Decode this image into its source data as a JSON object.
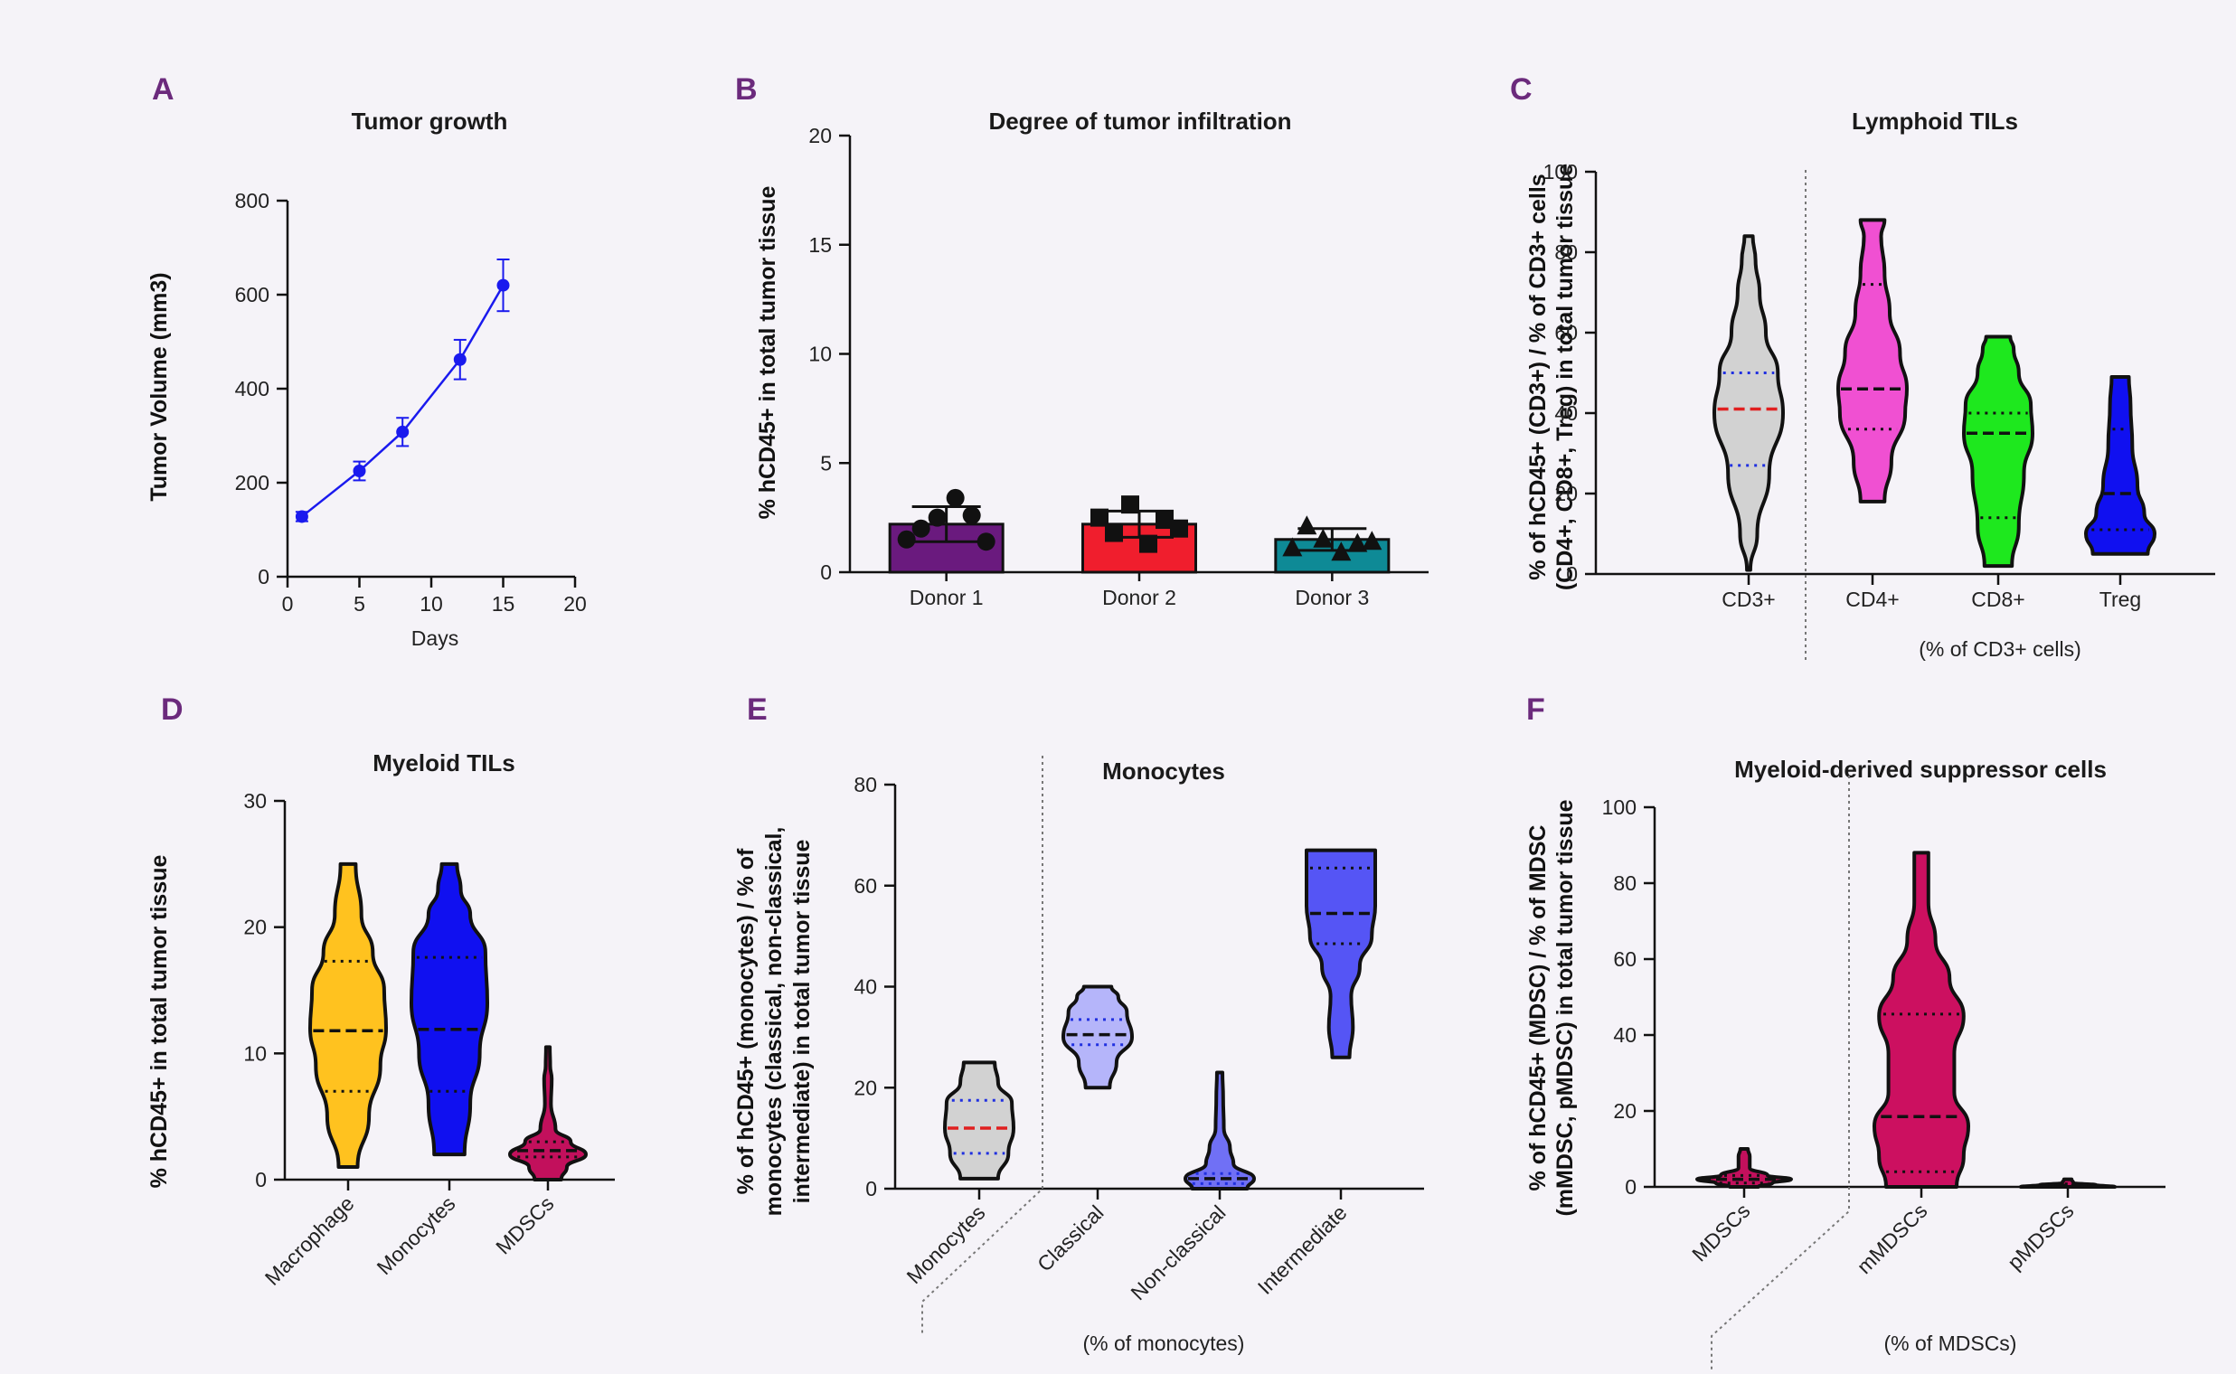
{
  "panels": [
    {
      "letter": "A",
      "title": "Tumor growth",
      "ylabel": "Tumor Volume (mm3)",
      "xlabel": "Days"
    },
    {
      "letter": "B",
      "title": "Degree of tumor infiltration",
      "ylabel": "% hCD45+ in total tumor tissue",
      "xlabel": ""
    },
    {
      "letter": "C",
      "title": "Lymphoid TILs",
      "ylabel": [
        "% of hCD45+ (CD3+) / % of CD3+ cells",
        "(CD4+, CD8+, Treg) in total tumor tissue"
      ],
      "xlabel": "(% of CD3+ cells)"
    },
    {
      "letter": "D",
      "title": "Myeloid TILs",
      "ylabel": "% hCD45+ in total tumor tissue",
      "xlabel": ""
    },
    {
      "letter": "E",
      "title": "Monocytes",
      "ylabel": [
        "% of hCD45+ (monocytes) / % of",
        "monocytes (classical, non-classical,",
        "intermediate) in total tumor tissue"
      ],
      "xlabel": "(% of monocytes)"
    },
    {
      "letter": "F",
      "title": "Myeloid-derived suppressor cells",
      "ylabel": [
        "% of hCD45+ (MDSC) / % of MDSC",
        "(mMDSC, pMDSC) in total tumor tissue"
      ],
      "xlabel": "(% of MDSCs)"
    }
  ],
  "chart_data": [
    {
      "type": "line",
      "title": "Tumor growth",
      "xlabel": "Days",
      "ylabel": "Tumor Volume (mm3)",
      "xlim": [
        0,
        20
      ],
      "ylim": [
        0,
        800
      ],
      "xticks": [
        0,
        5,
        10,
        15,
        20
      ],
      "yticks": [
        0,
        200,
        400,
        600,
        800
      ],
      "color": "#1a1aee",
      "x": [
        1,
        5,
        8,
        12,
        15
      ],
      "y": [
        128,
        225,
        308,
        462,
        620
      ],
      "err": [
        10,
        20,
        30,
        42,
        55
      ]
    },
    {
      "type": "bar",
      "title": "Degree of tumor infiltration",
      "ylabel": "% hCD45+ in total tumor tissue",
      "ylim": [
        0,
        20
      ],
      "yticks": [
        0,
        5,
        10,
        15,
        20
      ],
      "categories": [
        "Donor 1",
        "Donor 2",
        "Donor 3"
      ],
      "values": [
        2.2,
        2.2,
        1.5
      ],
      "err": [
        0.8,
        0.6,
        0.5
      ],
      "colors": [
        "#6a1a7e",
        "#f01e2d",
        "#0e8a96"
      ],
      "points": [
        [
          1.5,
          2.0,
          2.5,
          3.4,
          2.6,
          1.4
        ],
        [
          2.5,
          1.8,
          3.1,
          1.3,
          2.4,
          2.0
        ],
        [
          1.1,
          2.1,
          1.5,
          0.9,
          1.3,
          1.4
        ]
      ],
      "markers": [
        "circle",
        "square",
        "triangle"
      ]
    },
    {
      "type": "violin",
      "title": "Lymphoid TILs",
      "ylim": [
        0,
        100
      ],
      "yticks": [
        0,
        20,
        40,
        60,
        80,
        100
      ],
      "categories": [
        "CD3+",
        "CD4+",
        "CD8+",
        "Treg"
      ],
      "colors": [
        "#d2d2d2",
        "#f050d2",
        "#1ee81e",
        "#1010f0"
      ],
      "min": [
        1,
        18,
        2,
        5
      ],
      "max": [
        84,
        88,
        59,
        49
      ],
      "median": [
        41,
        46,
        35,
        20
      ],
      "q1": [
        27,
        36,
        14,
        11
      ],
      "q3": [
        50,
        72,
        40,
        36
      ],
      "median_color": [
        "#e02020",
        "#111111",
        "#111111",
        "#111111"
      ],
      "quart_color": [
        "#2030e0",
        "#111111",
        "#111111",
        "#111111"
      ],
      "widths": [
        [
          0,
          0.22
        ],
        [
          0.2,
          0.4
        ],
        [
          0.4,
          0.7
        ],
        [
          0.5,
          1
        ],
        [
          0.6,
          0.85
        ],
        [
          0.75,
          0.45
        ],
        [
          0.9,
          0.25
        ],
        [
          1,
          0.12
        ]
      ],
      "shape_sets": [
        [
          [
            1,
            0.05
          ],
          [
            10,
            0.25
          ],
          [
            25,
            0.6
          ],
          [
            40,
            1.0
          ],
          [
            50,
            0.85
          ],
          [
            60,
            0.5
          ],
          [
            70,
            0.32
          ],
          [
            78,
            0.2
          ],
          [
            84,
            0.12
          ]
        ],
        [
          [
            18,
            0.35
          ],
          [
            28,
            0.55
          ],
          [
            40,
            0.95
          ],
          [
            46,
            1.0
          ],
          [
            55,
            0.8
          ],
          [
            65,
            0.5
          ],
          [
            75,
            0.35
          ],
          [
            84,
            0.25
          ],
          [
            88,
            0.35
          ]
        ],
        [
          [
            2,
            0.4
          ],
          [
            12,
            0.6
          ],
          [
            25,
            0.75
          ],
          [
            35,
            1.0
          ],
          [
            42,
            0.95
          ],
          [
            50,
            0.6
          ],
          [
            56,
            0.45
          ],
          [
            59,
            0.35
          ]
        ],
        [
          [
            5,
            0.8
          ],
          [
            10,
            1.0
          ],
          [
            15,
            0.7
          ],
          [
            22,
            0.5
          ],
          [
            32,
            0.35
          ],
          [
            42,
            0.3
          ],
          [
            49,
            0.25
          ]
        ]
      ]
    },
    {
      "type": "violin",
      "title": "Myeloid TILs",
      "ylim": [
        0,
        30
      ],
      "yticks": [
        0,
        10,
        20,
        30
      ],
      "categories": [
        "Macrophage",
        "Monocytes",
        "MDSCs"
      ],
      "colors": [
        "#ffc21f",
        "#1010f0",
        "#c2105c"
      ],
      "min": [
        1,
        2,
        0
      ],
      "max": [
        25,
        25,
        10.5
      ],
      "median": [
        11.8,
        11.9,
        2.3
      ],
      "q1": [
        7,
        7,
        1.8
      ],
      "q3": [
        17.3,
        17.6,
        3
      ],
      "shape_sets": [
        [
          [
            1,
            0.25
          ],
          [
            5,
            0.55
          ],
          [
            9,
            0.85
          ],
          [
            12,
            1.0
          ],
          [
            15,
            0.95
          ],
          [
            18,
            0.65
          ],
          [
            21,
            0.35
          ],
          [
            25,
            0.2
          ]
        ],
        [
          [
            2,
            0.4
          ],
          [
            6,
            0.55
          ],
          [
            10,
            0.8
          ],
          [
            14,
            1.0
          ],
          [
            18,
            0.95
          ],
          [
            21,
            0.55
          ],
          [
            23,
            0.3
          ],
          [
            25,
            0.2
          ]
        ],
        [
          [
            0,
            0.35
          ],
          [
            1,
            0.5
          ],
          [
            2,
            1.0
          ],
          [
            3,
            0.6
          ],
          [
            4,
            0.2
          ],
          [
            6,
            0.08
          ],
          [
            8,
            0.1
          ],
          [
            9,
            0.06
          ],
          [
            10.5,
            0.05
          ]
        ]
      ]
    },
    {
      "type": "violin",
      "title": "Monocytes",
      "ylim": [
        0,
        80
      ],
      "yticks": [
        0,
        20,
        40,
        60,
        80
      ],
      "categories": [
        "Monocytes",
        "Classical",
        "Non-classical",
        "Intermediate"
      ],
      "colors": [
        "#d2d2d2",
        "#b5b5fa",
        "#7070f5",
        "#5555f5"
      ],
      "min": [
        2,
        20,
        0,
        26
      ],
      "max": [
        25,
        40,
        23,
        67
      ],
      "median": [
        12,
        30.5,
        2,
        54.5
      ],
      "q1": [
        7,
        28.5,
        1,
        48.5
      ],
      "q3": [
        17.5,
        33.5,
        3,
        63.5
      ],
      "median_color": [
        "#e02020",
        "#111111",
        "#111111",
        "#111111"
      ],
      "quart_color": [
        "#2030e0",
        "#2030e0",
        "#2030e0",
        "#111111"
      ],
      "shape_sets": [
        [
          [
            2,
            0.55
          ],
          [
            7,
            0.85
          ],
          [
            12,
            1.0
          ],
          [
            17,
            0.95
          ],
          [
            21,
            0.55
          ],
          [
            25,
            0.45
          ]
        ],
        [
          [
            20,
            0.35
          ],
          [
            25,
            0.55
          ],
          [
            30,
            1.0
          ],
          [
            35,
            0.85
          ],
          [
            38,
            0.6
          ],
          [
            40,
            0.4
          ]
        ],
        [
          [
            0,
            0.8
          ],
          [
            2,
            1.0
          ],
          [
            5,
            0.4
          ],
          [
            8,
            0.3
          ],
          [
            12,
            0.12
          ],
          [
            18,
            0.1
          ],
          [
            23,
            0.08
          ]
        ],
        [
          [
            26,
            0.25
          ],
          [
            32,
            0.35
          ],
          [
            38,
            0.3
          ],
          [
            44,
            0.55
          ],
          [
            50,
            0.9
          ],
          [
            56,
            1.0
          ],
          [
            62,
            1.0
          ],
          [
            67,
            1.0
          ]
        ]
      ]
    },
    {
      "type": "violin",
      "title": "Myeloid-derived suppressor cells",
      "ylim": [
        0,
        100
      ],
      "yticks": [
        0,
        20,
        40,
        60,
        80,
        100
      ],
      "categories": [
        "MDSCs",
        "mMDSCs",
        "pMDSCs"
      ],
      "colors": [
        "#c2105c",
        "#cc1060",
        "#c2105c"
      ],
      "min": [
        0,
        0,
        0
      ],
      "max": [
        10,
        88,
        2
      ],
      "median": [
        2,
        18.5,
        0.4
      ],
      "q1": [
        1,
        4,
        0.2
      ],
      "q3": [
        3,
        45.5,
        0.8
      ],
      "shape_sets": [
        [
          [
            0,
            0.3
          ],
          [
            1,
            0.6
          ],
          [
            2,
            1.0
          ],
          [
            3,
            0.5
          ],
          [
            5,
            0.12
          ],
          [
            8,
            0.12
          ],
          [
            10,
            0.08
          ]
        ],
        [
          [
            0,
            0.75
          ],
          [
            8,
            0.9
          ],
          [
            16,
            1.0
          ],
          [
            25,
            0.7
          ],
          [
            35,
            0.7
          ],
          [
            45,
            0.9
          ],
          [
            55,
            0.6
          ],
          [
            65,
            0.3
          ],
          [
            75,
            0.15
          ],
          [
            88,
            0.15
          ]
        ],
        [
          [
            0,
            1.0
          ],
          [
            0.5,
            0.6
          ],
          [
            1,
            0.12
          ],
          [
            2,
            0.08
          ]
        ]
      ]
    }
  ]
}
